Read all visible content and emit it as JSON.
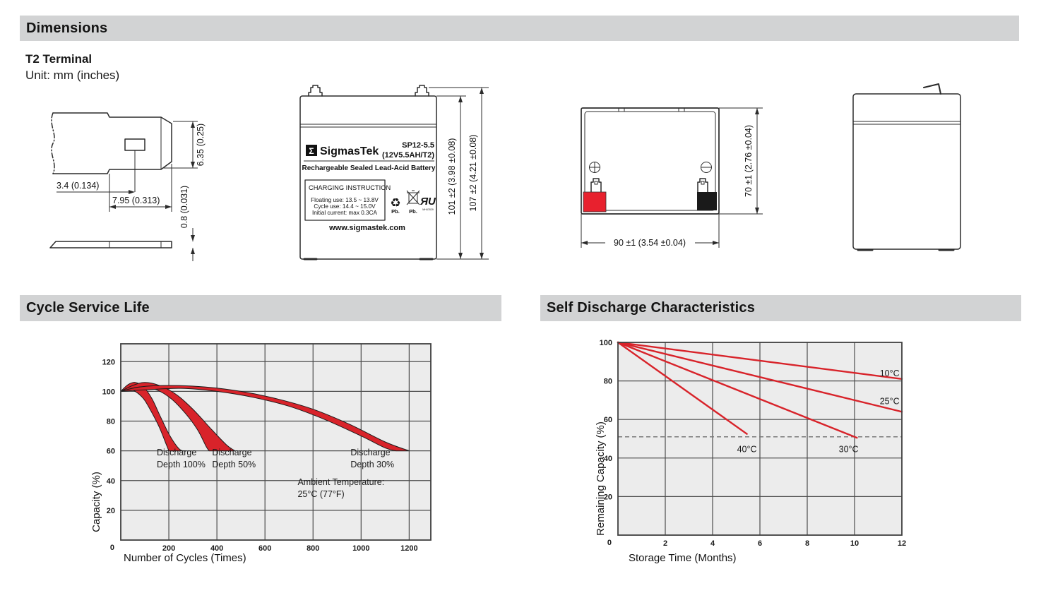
{
  "page": {
    "dimensions_title": "Dimensions",
    "terminal_type": "T2 Terminal",
    "unit_note": "Unit: mm (inches)",
    "cycle_title": "Cycle Service Life",
    "discharge_title": "Self Discharge Characteristics"
  },
  "colors": {
    "section_bar": "#d2d3d4",
    "chart_bg": "#ececec",
    "grid": "#4d4d4d",
    "band_red": "#d8232a",
    "line_red": "#d8232a",
    "terminal_positive_red": "#e8212e",
    "terminal_negative_black": "#1a1a1a"
  },
  "terminal_drawing": {
    "dim_hole_offset": "3.4 (0.134)",
    "dim_width": "7.95 (0.313)",
    "dim_height": "6.35 (0.25)",
    "dim_thickness": "0.8 (0.031)"
  },
  "front_view": {
    "sigma": "Σ",
    "brand": "SigmasTek",
    "model": "SP12-5.5",
    "spec": "(12V5.5AH/T2)",
    "subtitle": "Rechargeable Sealed Lead-Acid Battery",
    "charging_title": "CHARGING INSTRUCTION",
    "charging_lines": [
      "Floating use: 13.5 ~ 13.8V",
      "Cycle use: 14.4 ~ 15.0V",
      "Initial current: max 0.3CA"
    ],
    "pb_recycle_glyph": "♻",
    "pb_recycle": "Pb.",
    "pb_bin": "Pb.",
    "ul_mark": "ЯU",
    "ul_code": "MH47829",
    "website": "www.sigmastek.com",
    "dim_height_case": "101 ±2 (3.98 ±0.08)",
    "dim_height_overall": "107 ±2 (4.21 ±0.08)"
  },
  "top_view": {
    "plus_symbol": "+",
    "minus_symbol": "−",
    "dim_height": "70 ±1 (2.76 ±0.04)",
    "dim_width": "90 ±1 (3.54 ±0.04)"
  },
  "chart_data": [
    {
      "type": "area",
      "title": "Cycle Service Life",
      "xlabel": "Number of Cycles (Times)",
      "ylabel": "Capacity (%)",
      "xlim": [
        0,
        1290
      ],
      "ylim": [
        0,
        132
      ],
      "xticks": [
        200,
        400,
        600,
        800,
        1000,
        1200
      ],
      "yticks": [
        20,
        40,
        60,
        80,
        100,
        120
      ],
      "xgrid": [
        200,
        400,
        600,
        800,
        1000,
        1200
      ],
      "ygrid": [
        20,
        40,
        60,
        80,
        100,
        120
      ],
      "origin_label": "0",
      "grid": true,
      "legend": "none",
      "bands": [
        {
          "name": "Discharge Depth 100%",
          "upper": [
            [
              0,
              100
            ],
            [
              30,
              104.5
            ],
            [
              60,
              106
            ],
            [
              95,
              103
            ],
            [
              130,
              95
            ],
            [
              165,
              83
            ],
            [
              205,
              70
            ],
            [
              245,
              61
            ],
            [
              270,
              60
            ]
          ],
          "lower": [
            [
              0,
              100
            ],
            [
              30,
              101.5
            ],
            [
              60,
              100
            ],
            [
              95,
              95
            ],
            [
              125,
              87
            ],
            [
              160,
              76
            ],
            [
              190,
              64
            ],
            [
              200,
              60
            ]
          ]
        },
        {
          "name": "Discharge Depth 50%",
          "upper": [
            [
              0,
              100
            ],
            [
              50,
              104
            ],
            [
              100,
              106
            ],
            [
              160,
              104
            ],
            [
              230,
              98
            ],
            [
              300,
              88
            ],
            [
              380,
              74
            ],
            [
              440,
              64
            ],
            [
              475,
              60
            ]
          ],
          "lower": [
            [
              0,
              100
            ],
            [
              45,
              102
            ],
            [
              90,
              103
            ],
            [
              150,
              101
            ],
            [
              210,
              95
            ],
            [
              270,
              85
            ],
            [
              320,
              74
            ],
            [
              355,
              63
            ],
            [
              368,
              60
            ]
          ]
        },
        {
          "name": "Discharge Depth 30%",
          "upper": [
            [
              0,
              100
            ],
            [
              80,
              103
            ],
            [
              200,
              104
            ],
            [
              350,
              103
            ],
            [
              500,
              100
            ],
            [
              650,
              95
            ],
            [
              800,
              88
            ],
            [
              950,
              78
            ],
            [
              1100,
              66
            ],
            [
              1200,
              60
            ]
          ],
          "lower": [
            [
              0,
              100
            ],
            [
              100,
              101
            ],
            [
              250,
              102
            ],
            [
              400,
              100
            ],
            [
              550,
              96
            ],
            [
              700,
              90
            ],
            [
              850,
              81
            ],
            [
              1000,
              70
            ],
            [
              1100,
              62
            ],
            [
              1145,
              60
            ]
          ]
        }
      ],
      "annotations": [
        {
          "lines": [
            "Discharge",
            "Depth 100%"
          ],
          "x": 150,
          "y": 57,
          "anchor": "start"
        },
        {
          "lines": [
            "Discharge",
            "Depth 50%"
          ],
          "x": 380,
          "y": 57,
          "anchor": "start"
        },
        {
          "lines": [
            "Discharge",
            "Depth 30%"
          ],
          "x": 956,
          "y": 57,
          "anchor": "start"
        },
        {
          "lines": [
            "Ambient Temperature:",
            "25°C (77°F)"
          ],
          "x": 736,
          "y": 37,
          "anchor": "start"
        }
      ]
    },
    {
      "type": "line",
      "title": "Self Discharge Characteristics",
      "xlabel": "Storage Time (Months)",
      "ylabel": "Remaining Capacity (%)",
      "xlim": [
        0,
        12
      ],
      "ylim": [
        0,
        100
      ],
      "xticks": [
        2,
        4,
        6,
        8,
        10,
        12
      ],
      "yticks": [
        20,
        40,
        60,
        80,
        100
      ],
      "xgrid": [
        2,
        4,
        6,
        8,
        10
      ],
      "ygrid": [
        20,
        40,
        60,
        80
      ],
      "origin_label": "0",
      "grid": true,
      "legend": "inline-labels",
      "series": [
        {
          "name": "10°C",
          "points": [
            [
              0,
              100
            ],
            [
              12,
              81
            ]
          ]
        },
        {
          "name": "25°C",
          "points": [
            [
              0,
              100
            ],
            [
              12,
              64
            ]
          ]
        },
        {
          "name": "30°C",
          "points": [
            [
              0,
              100
            ],
            [
              10.1,
              50.5
            ]
          ]
        },
        {
          "name": "40°C",
          "points": [
            [
              0,
              100
            ],
            [
              5.45,
              52.5
            ]
          ]
        }
      ],
      "ref_lines": [
        {
          "y": 51,
          "x1": 0,
          "x2": 12,
          "style": "dashed"
        }
      ],
      "annotations": [
        {
          "lines": [
            "10°C"
          ],
          "x": 11.9,
          "y": 82.5,
          "anchor": "end"
        },
        {
          "lines": [
            "25°C"
          ],
          "x": 11.9,
          "y": 68,
          "anchor": "end"
        },
        {
          "lines": [
            "30°C"
          ],
          "x": 9.75,
          "y": 43,
          "anchor": "middle"
        },
        {
          "lines": [
            "40°C"
          ],
          "x": 5.45,
          "y": 43,
          "anchor": "middle"
        }
      ]
    }
  ]
}
